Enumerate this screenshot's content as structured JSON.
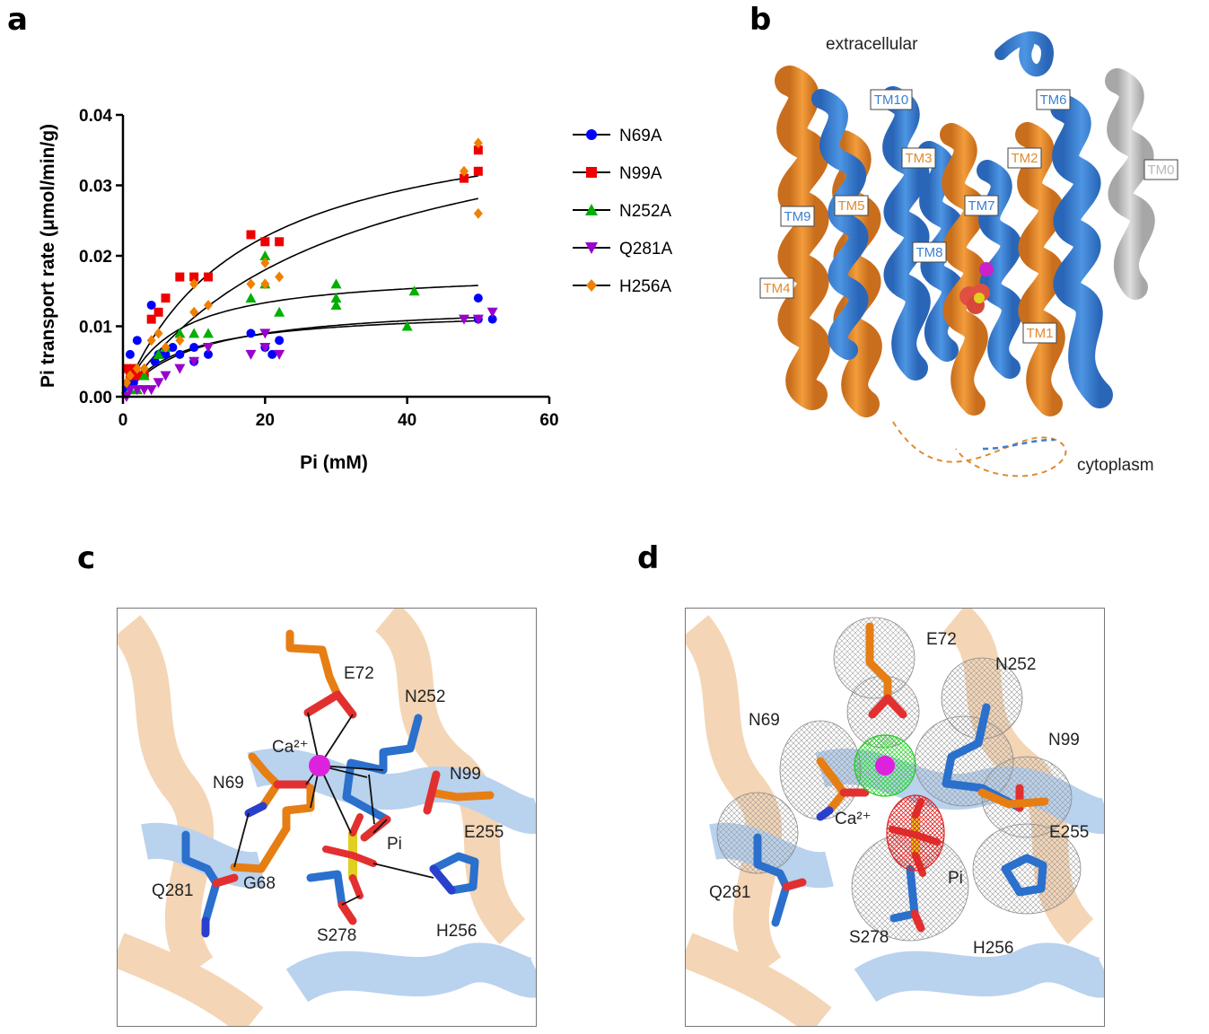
{
  "panels": {
    "a": "a",
    "b": "b",
    "c": "c",
    "d": "d"
  },
  "chart_data": {
    "type": "scatter",
    "xlabel": "Pi (mM)",
    "ylabel": "Pi transport rate (μmol/min/g)",
    "xlim": [
      0,
      60
    ],
    "ylim": [
      0,
      0.04
    ],
    "xticks": [
      "0",
      "20",
      "40",
      "60"
    ],
    "yticks": [
      "0.00",
      "0.01",
      "0.02",
      "0.03",
      "0.04"
    ],
    "legend_position": "right",
    "grid": false,
    "series": [
      {
        "name": "N69A",
        "color": "#0000ff",
        "marker": "circle",
        "points": [
          [
            0.5,
            0.001
          ],
          [
            1,
            0.002
          ],
          [
            1.5,
            0.002
          ],
          [
            2,
            0.008
          ],
          [
            1,
            0.006
          ],
          [
            3,
            0.003
          ],
          [
            4,
            0.013
          ],
          [
            4.5,
            0.005
          ],
          [
            5,
            0.006
          ],
          [
            6,
            0.006
          ],
          [
            7,
            0.007
          ],
          [
            8,
            0.006
          ],
          [
            10,
            0.007
          ],
          [
            10,
            0.005
          ],
          [
            12,
            0.006
          ],
          [
            18,
            0.009
          ],
          [
            20,
            0.007
          ],
          [
            21,
            0.006
          ],
          [
            22,
            0.008
          ],
          [
            50,
            0.014
          ],
          [
            50,
            0.011
          ],
          [
            52,
            0.011
          ]
        ],
        "fit": {
          "vmax": 0.0125,
          "km": 8
        }
      },
      {
        "name": "N99A",
        "color": "#ee0000",
        "marker": "square",
        "points": [
          [
            0.5,
            0.004
          ],
          [
            1,
            0.003
          ],
          [
            1.5,
            0.004
          ],
          [
            2,
            0.003
          ],
          [
            3,
            0.003
          ],
          [
            4,
            0.011
          ],
          [
            5,
            0.012
          ],
          [
            6,
            0.014
          ],
          [
            8,
            0.017
          ],
          [
            10,
            0.017
          ],
          [
            12,
            0.017
          ],
          [
            18,
            0.023
          ],
          [
            20,
            0.022
          ],
          [
            22,
            0.022
          ],
          [
            48,
            0.031
          ],
          [
            50,
            0.035
          ],
          [
            50,
            0.032
          ]
        ],
        "fit": {
          "vmax": 0.042,
          "km": 17
        }
      },
      {
        "name": "N252A",
        "color": "#00b000",
        "marker": "triangle-up",
        "points": [
          [
            1,
            0.001
          ],
          [
            2,
            0.001
          ],
          [
            3,
            0.003
          ],
          [
            5,
            0.006
          ],
          [
            6,
            0.007
          ],
          [
            8,
            0.009
          ],
          [
            10,
            0.009
          ],
          [
            12,
            0.009
          ],
          [
            18,
            0.014
          ],
          [
            20,
            0.02
          ],
          [
            20,
            0.016
          ],
          [
            22,
            0.012
          ],
          [
            30,
            0.016
          ],
          [
            30,
            0.014
          ],
          [
            30,
            0.013
          ],
          [
            40,
            0.01
          ],
          [
            41,
            0.015
          ]
        ],
        "fit": {
          "vmax": 0.018,
          "km": 7
        }
      },
      {
        "name": "Q281A",
        "color": "#9900cc",
        "marker": "triangle-down",
        "points": [
          [
            0.5,
            0.0
          ],
          [
            1,
            0.001
          ],
          [
            2,
            0.001
          ],
          [
            3,
            0.001
          ],
          [
            4,
            0.001
          ],
          [
            5,
            0.002
          ],
          [
            6,
            0.003
          ],
          [
            8,
            0.004
          ],
          [
            10,
            0.005
          ],
          [
            12,
            0.007
          ],
          [
            18,
            0.006
          ],
          [
            20,
            0.009
          ],
          [
            20,
            0.007
          ],
          [
            22,
            0.006
          ],
          [
            48,
            0.011
          ],
          [
            50,
            0.011
          ],
          [
            52,
            0.012
          ]
        ],
        "fit": {
          "vmax": 0.0135,
          "km": 10
        }
      },
      {
        "name": "H256A",
        "color": "#f08000",
        "marker": "diamond",
        "points": [
          [
            0.5,
            0.002
          ],
          [
            1,
            0.003
          ],
          [
            2,
            0.004
          ],
          [
            3,
            0.004
          ],
          [
            4,
            0.008
          ],
          [
            5,
            0.009
          ],
          [
            6,
            0.007
          ],
          [
            8,
            0.008
          ],
          [
            10,
            0.016
          ],
          [
            10,
            0.012
          ],
          [
            12,
            0.013
          ],
          [
            18,
            0.016
          ],
          [
            20,
            0.019
          ],
          [
            20,
            0.016
          ],
          [
            22,
            0.017
          ],
          [
            48,
            0.032
          ],
          [
            50,
            0.036
          ],
          [
            50,
            0.026
          ]
        ],
        "fit": {
          "vmax": 0.045,
          "km": 30
        }
      }
    ]
  },
  "panel_b": {
    "top_label": "extracellular",
    "bottom_label": "cytoplasm",
    "helices": [
      {
        "label": "TM10",
        "color": "#3a7fd0"
      },
      {
        "label": "TM6",
        "color": "#3a7fd0"
      },
      {
        "label": "TM3",
        "color": "#e08a2e"
      },
      {
        "label": "TM2",
        "color": "#e08a2e"
      },
      {
        "label": "TM0",
        "color": "#b8b8b8"
      },
      {
        "label": "TM9",
        "color": "#3a7fd0"
      },
      {
        "label": "TM5",
        "color": "#e08a2e"
      },
      {
        "label": "TM7",
        "color": "#3a7fd0"
      },
      {
        "label": "TM8",
        "color": "#3a7fd0"
      },
      {
        "label": "TM4",
        "color": "#e08a2e"
      },
      {
        "label": "TM1",
        "color": "#e08a2e"
      }
    ]
  },
  "panel_c": {
    "residues": [
      "E72",
      "N252",
      "Ca²⁺",
      "N69",
      "N99",
      "E255",
      "Pi",
      "Q281",
      "G68",
      "S278",
      "H256"
    ]
  },
  "panel_d": {
    "residues": [
      "E72",
      "N252",
      "N69",
      "N99",
      "Ca²⁺",
      "E255",
      "Q281",
      "Pi",
      "S278",
      "H256"
    ]
  }
}
